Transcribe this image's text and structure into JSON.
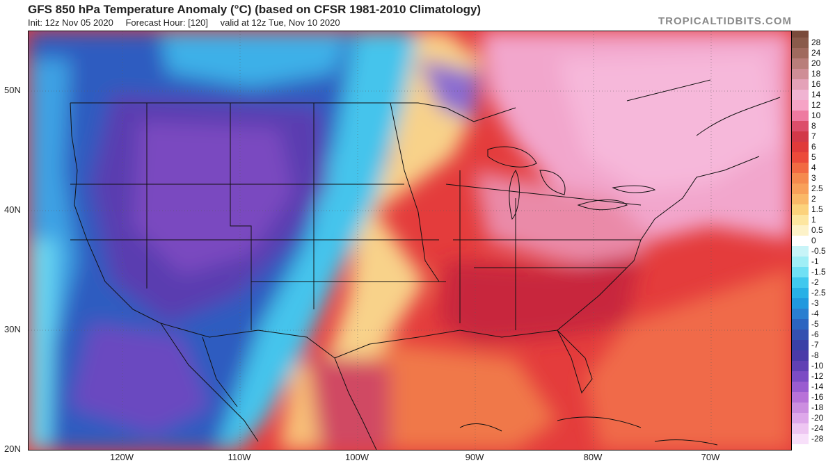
{
  "header": {
    "title": "GFS 850 hPa Temperature Anomaly (°C) (based on CFSR 1981-2010 Climatology)",
    "init": "Init: 12z Nov 05 2020",
    "forecast_hour": "Forecast Hour: [120]",
    "valid": "valid at 12z Tue, Nov 10 2020",
    "watermark": "TROPICALTIDBITS.COM"
  },
  "axes": {
    "lat_labels": [
      "50N",
      "40N",
      "30N",
      "20N"
    ],
    "lon_labels": [
      "120W",
      "110W",
      "100W",
      "90W",
      "80W",
      "70W"
    ]
  },
  "colorbar": {
    "labels": [
      "28",
      "24",
      "20",
      "18",
      "16",
      "14",
      "12",
      "10",
      "8",
      "7",
      "6",
      "5",
      "4",
      "3",
      "2.5",
      "2",
      "1.5",
      "1",
      "0.5",
      "0",
      "-0.5",
      "-1",
      "-1.5",
      "-2",
      "-2.5",
      "-3",
      "-4",
      "-5",
      "-6",
      "-7",
      "-8",
      "-10",
      "-12",
      "-14",
      "-16",
      "-18",
      "-20",
      "-24",
      "-28"
    ],
    "colors": [
      "#8a5a4a",
      "#a06a5e",
      "#b97e7a",
      "#cf8e96",
      "#e4a2b8",
      "#f0b4d2",
      "#f6a4c6",
      "#ee7aa0",
      "#dc4e6a",
      "#d23848",
      "#e03a3a",
      "#ec4a3a",
      "#f26a42",
      "#f58a4e",
      "#f8a05a",
      "#fab868",
      "#fcd27c",
      "#fde6a0",
      "#fdf2c8",
      "#ffffff",
      "#c8f4f8",
      "#a0eef6",
      "#70e0f4",
      "#40c8ee",
      "#28b0e6",
      "#2098de",
      "#2a7ed0",
      "#2c64c0",
      "#3450b0",
      "#3a40a6",
      "#4a3aa8",
      "#6040b4",
      "#7c4cc4",
      "#9a5cd0",
      "#b872d8",
      "#cc8ee0",
      "#dea8ea",
      "#eec6f2",
      "#f8e0fa"
    ]
  }
}
